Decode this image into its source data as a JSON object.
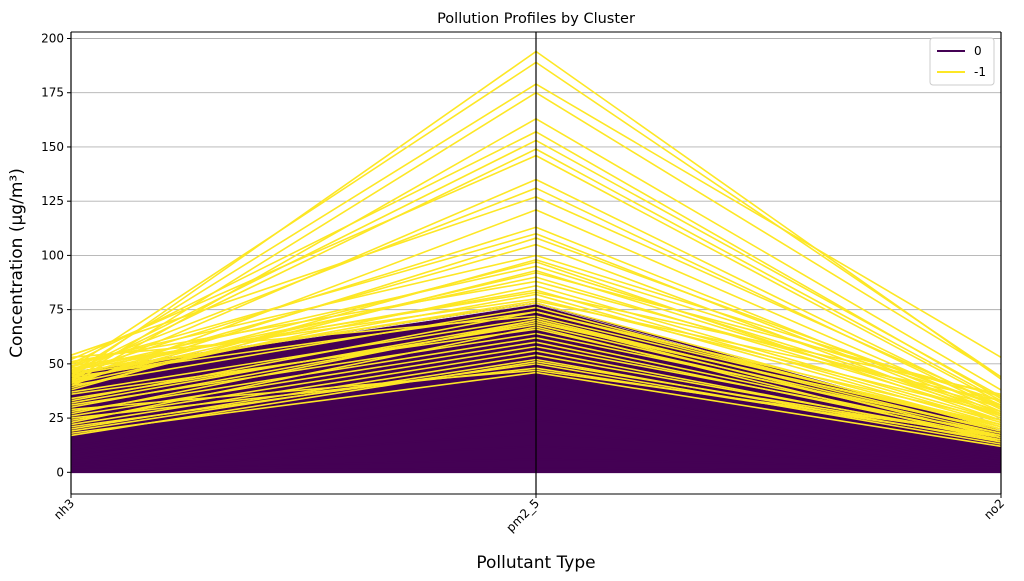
{
  "chart_data": {
    "type": "parallel_coordinates",
    "title": "Pollution Profiles by Cluster",
    "xlabel": "Pollutant Type",
    "ylabel": "Concentration (µg/m³)",
    "axes": [
      "nh3",
      "pm2_5",
      "no2"
    ],
    "ylim": [
      -10,
      203
    ],
    "yticks": [
      0,
      25,
      50,
      75,
      100,
      125,
      150,
      175,
      200
    ],
    "grid": true,
    "legend_position": "top-right",
    "series": [
      {
        "name": "0",
        "color": "#440154",
        "fill_envelope": {
          "lower": [
            0,
            0,
            0
          ],
          "upper": [
            46,
            77,
            19
          ]
        },
        "lines": [
          [
            46,
            78,
            19
          ],
          [
            44,
            77,
            18
          ],
          [
            42,
            76,
            18
          ],
          [
            40,
            75,
            17
          ],
          [
            38,
            74,
            17
          ],
          [
            35,
            72,
            16
          ],
          [
            32,
            70,
            15
          ],
          [
            30,
            68,
            15
          ],
          [
            28,
            66,
            14
          ],
          [
            25,
            64,
            13
          ],
          [
            22,
            60,
            12
          ],
          [
            20,
            56,
            12
          ],
          [
            18,
            52,
            11
          ],
          [
            15,
            48,
            10
          ],
          [
            12,
            44,
            9
          ],
          [
            10,
            40,
            8
          ],
          [
            8,
            35,
            7
          ],
          [
            6,
            30,
            6
          ],
          [
            4,
            24,
            5
          ],
          [
            3,
            18,
            4
          ],
          [
            2,
            12,
            3
          ],
          [
            1,
            6,
            2
          ],
          [
            0.5,
            2,
            1
          ],
          [
            0.2,
            0.5,
            0.3
          ],
          [
            0,
            0,
            0
          ]
        ]
      },
      {
        "name": "-1",
        "color": "#fde725",
        "lines": [
          [
            44,
            194,
            43
          ],
          [
            48,
            189,
            44
          ],
          [
            46,
            179,
            53
          ],
          [
            42,
            175,
            44
          ],
          [
            41,
            163,
            38
          ],
          [
            50,
            157,
            34
          ],
          [
            46,
            153,
            35
          ],
          [
            45,
            149,
            33
          ],
          [
            52,
            146,
            32
          ],
          [
            43,
            135,
            30
          ],
          [
            47,
            131,
            29
          ],
          [
            54,
            127,
            31
          ],
          [
            40,
            121,
            28
          ],
          [
            46,
            113,
            27
          ],
          [
            49,
            110,
            26
          ],
          [
            41,
            108,
            30
          ],
          [
            44,
            105,
            25
          ],
          [
            50,
            100,
            33
          ],
          [
            42,
            97,
            24
          ],
          [
            47,
            95,
            28
          ],
          [
            39,
            93,
            27
          ],
          [
            45,
            90,
            26
          ],
          [
            51,
            88,
            30
          ],
          [
            41,
            86,
            24
          ],
          [
            47,
            84,
            23
          ],
          [
            43,
            82,
            22
          ],
          [
            49,
            80,
            27
          ],
          [
            46,
            78,
            21
          ],
          [
            40,
            76,
            20
          ],
          [
            44,
            74,
            24
          ],
          [
            53,
            72,
            22
          ],
          [
            32,
            70,
            21
          ],
          [
            30,
            69,
            22
          ],
          [
            34,
            68,
            19
          ],
          [
            36,
            66,
            18
          ],
          [
            31,
            64,
            20
          ],
          [
            28,
            62,
            17
          ],
          [
            26,
            60,
            16
          ],
          [
            24,
            58,
            18
          ],
          [
            22,
            56,
            15
          ],
          [
            20,
            54,
            16
          ],
          [
            19,
            52,
            14
          ],
          [
            17,
            51,
            16
          ],
          [
            21,
            50,
            13
          ],
          [
            25,
            48,
            15
          ],
          [
            29,
            47,
            17
          ],
          [
            18,
            46,
            12
          ],
          [
            33,
            74,
            21
          ],
          [
            37,
            71,
            19
          ],
          [
            27,
            70,
            16
          ],
          [
            23,
            67,
            14
          ],
          [
            45,
            79,
            33
          ],
          [
            48,
            83,
            36
          ],
          [
            42,
            92,
            35
          ],
          [
            38,
            98,
            31
          ]
        ]
      }
    ]
  }
}
